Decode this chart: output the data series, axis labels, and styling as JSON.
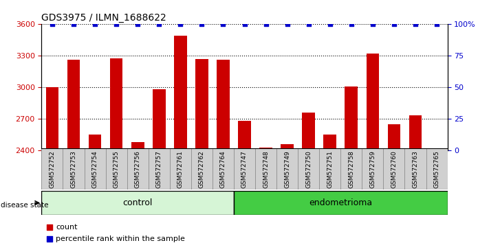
{
  "title": "GDS3975 / ILMN_1688622",
  "samples": [
    "GSM572752",
    "GSM572753",
    "GSM572754",
    "GSM572755",
    "GSM572756",
    "GSM572757",
    "GSM572761",
    "GSM572762",
    "GSM572764",
    "GSM572747",
    "GSM572748",
    "GSM572749",
    "GSM572750",
    "GSM572751",
    "GSM572758",
    "GSM572759",
    "GSM572760",
    "GSM572763",
    "GSM572765"
  ],
  "counts": [
    3005,
    3265,
    2550,
    3275,
    2480,
    2985,
    3495,
    3270,
    3265,
    2685,
    2430,
    2460,
    2760,
    2550,
    3010,
    3320,
    2650,
    2735,
    2420
  ],
  "percentile_ranks": [
    100,
    100,
    100,
    100,
    100,
    100,
    100,
    100,
    100,
    100,
    100,
    100,
    100,
    100,
    100,
    100,
    100,
    100,
    100
  ],
  "groups": [
    "control",
    "control",
    "control",
    "control",
    "control",
    "control",
    "control",
    "control",
    "control",
    "endometrioma",
    "endometrioma",
    "endometrioma",
    "endometrioma",
    "endometrioma",
    "endometrioma",
    "endometrioma",
    "endometrioma",
    "endometrioma",
    "endometrioma"
  ],
  "n_control": 9,
  "n_endometrioma": 10,
  "bar_color": "#cc0000",
  "dot_color": "#0000cc",
  "ylim_left": [
    2400,
    3600
  ],
  "ylim_right": [
    0,
    100
  ],
  "yticks_left": [
    2400,
    2700,
    3000,
    3300,
    3600
  ],
  "yticks_right": [
    0,
    25,
    50,
    75,
    100
  ],
  "control_fill": "#d6f5d6",
  "endometrioma_fill": "#44cc44",
  "tick_bg": "#d0d0d0"
}
